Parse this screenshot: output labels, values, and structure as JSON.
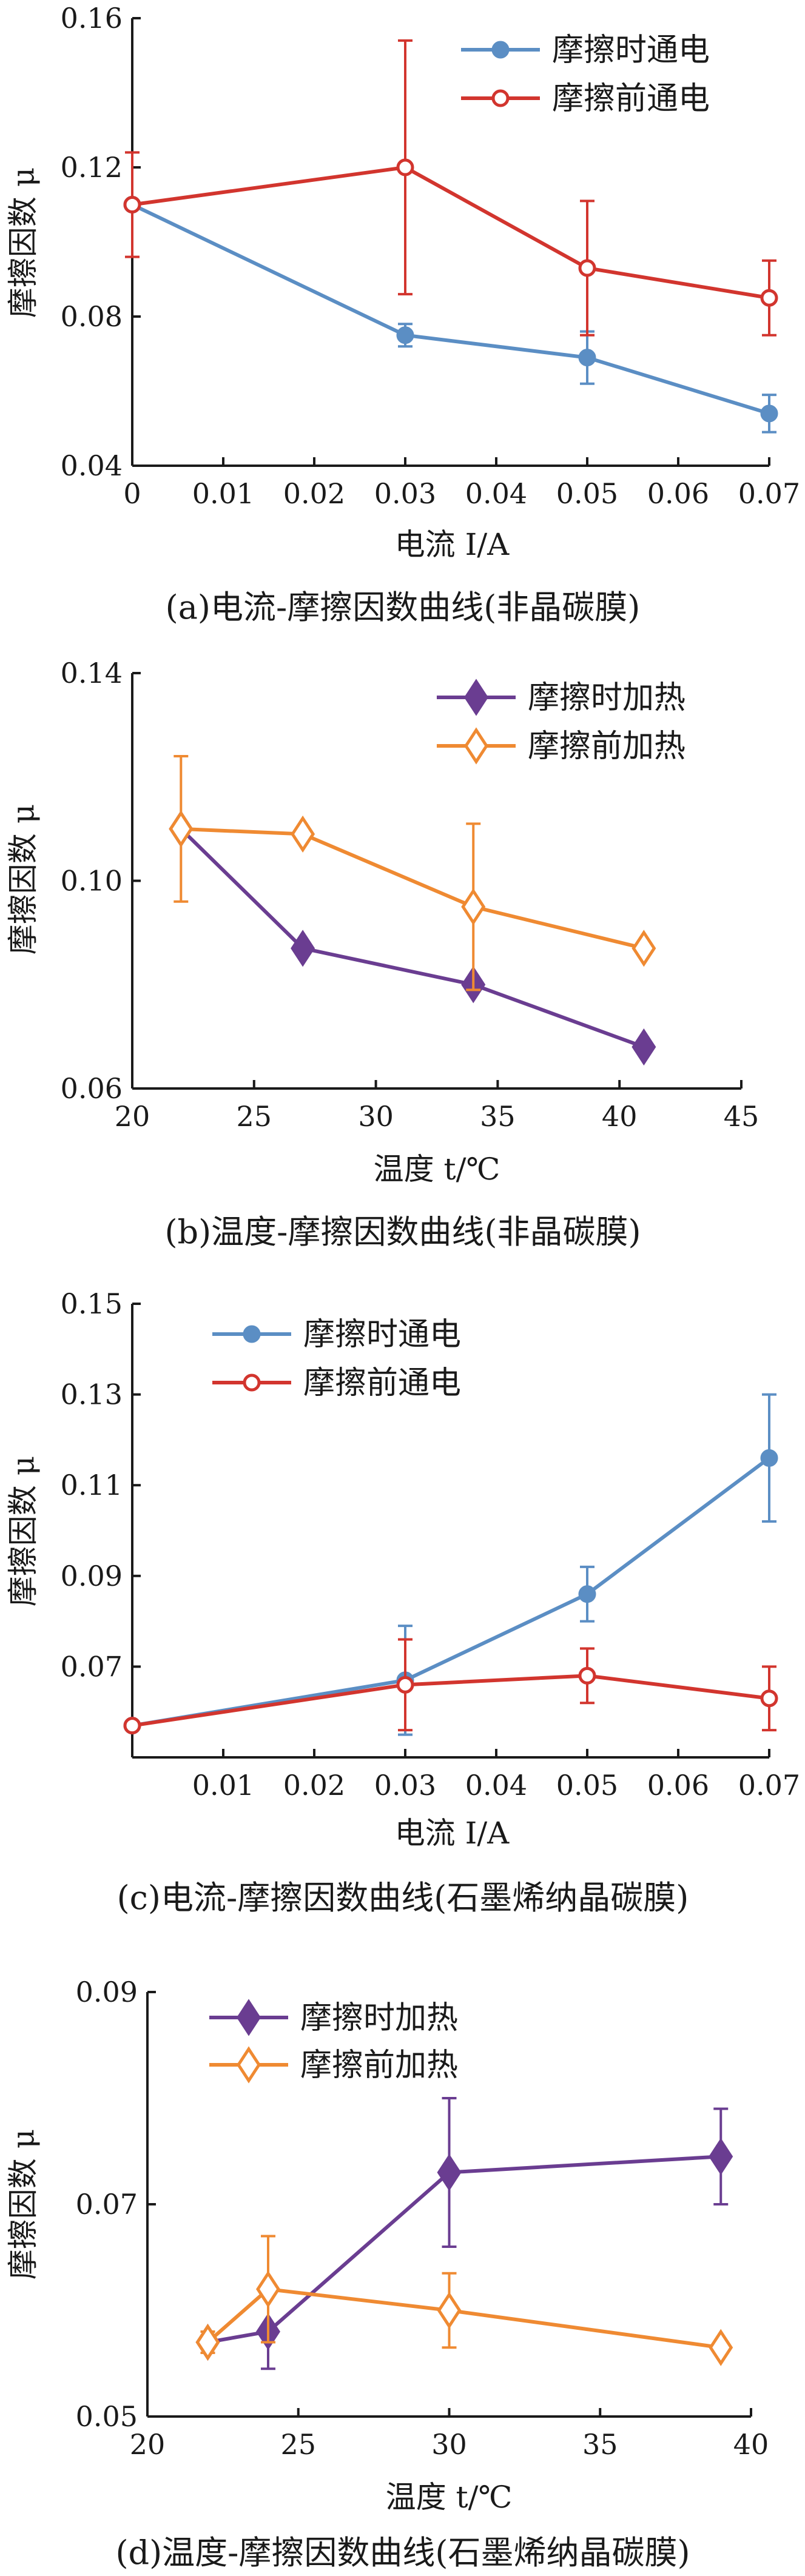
{
  "colors": {
    "blue": "#5b8ec4",
    "red": "#d2352e",
    "purple": "#6a3d91",
    "orange": "#ef8a32",
    "axis": "#1a1a1a"
  },
  "chart_data": [
    {
      "type": "line",
      "caption": "(a)电流-摩擦因数曲线(非晶碳膜)",
      "xlabel": "电流 I/A",
      "ylabel": "摩擦因数 μ",
      "xlim": [
        0,
        0.07
      ],
      "ylim": [
        0.04,
        0.16
      ],
      "xticks": [
        "0",
        "0.01",
        "0.02",
        "0.03",
        "0.04",
        "0.05",
        "0.06",
        "0.07"
      ],
      "yticks": [
        "0.04",
        "0.08",
        "0.12",
        "0.16"
      ],
      "legend_position": "top-right",
      "series": [
        {
          "name": "摩擦时通电",
          "color": "#5b8ec4",
          "marker": "circle-filled",
          "x": [
            0,
            0.03,
            0.05,
            0.07
          ],
          "y": [
            0.11,
            0.075,
            0.069,
            0.054
          ],
          "err": [
            0.0,
            0.003,
            0.007,
            0.005
          ]
        },
        {
          "name": "摩擦前通电",
          "color": "#d2352e",
          "marker": "circle-open",
          "x": [
            0,
            0.03,
            0.05,
            0.07
          ],
          "y": [
            0.11,
            0.12,
            0.093,
            0.085
          ],
          "err": [
            0.014,
            0.034,
            0.018,
            0.01
          ]
        }
      ]
    },
    {
      "type": "line",
      "caption": "(b)温度-摩擦因数曲线(非晶碳膜)",
      "xlabel": "温度 t/℃",
      "ylabel": "摩擦因数 μ",
      "xlim": [
        20,
        45
      ],
      "ylim": [
        0.06,
        0.14
      ],
      "xticks": [
        "20",
        "25",
        "30",
        "35",
        "40",
        "45"
      ],
      "yticks": [
        "0.06",
        "0.10",
        "0.14"
      ],
      "legend_position": "top-right",
      "series": [
        {
          "name": "摩擦时加热",
          "color": "#6a3d91",
          "marker": "diamond-filled",
          "x": [
            22,
            27,
            34,
            41
          ],
          "y": [
            0.11,
            0.087,
            0.08,
            0.068
          ],
          "err": [
            0.0,
            0.001,
            0.001,
            0.001
          ]
        },
        {
          "name": "摩擦前加热",
          "color": "#ef8a32",
          "marker": "diamond-open",
          "x": [
            22,
            27,
            34,
            41
          ],
          "y": [
            0.11,
            0.109,
            0.095,
            0.087
          ],
          "err": [
            0.014,
            0.0,
            0.016,
            0.0
          ]
        }
      ]
    },
    {
      "type": "line",
      "caption": "(c)电流-摩擦因数曲线(石墨烯纳晶碳膜)",
      "xlabel": "电流 I/A",
      "ylabel": "摩擦因数 μ",
      "xlim": [
        0,
        0.07
      ],
      "ylim": [
        0.05,
        0.15
      ],
      "xticks": [
        "0.01",
        "0.02",
        "0.03",
        "0.04",
        "0.05",
        "0.06",
        "0.07"
      ],
      "yticks": [
        "0.07",
        "0.09",
        "0.11",
        "0.13",
        "0.15"
      ],
      "legend_position": "top-left",
      "series": [
        {
          "name": "摩擦时通电",
          "color": "#5b8ec4",
          "marker": "circle-filled",
          "x": [
            0,
            0.03,
            0.05,
            0.07
          ],
          "y": [
            0.057,
            0.067,
            0.086,
            0.116
          ],
          "err": [
            0.0,
            0.012,
            0.006,
            0.014
          ]
        },
        {
          "name": "摩擦前通电",
          "color": "#d2352e",
          "marker": "circle-open",
          "x": [
            0,
            0.03,
            0.05,
            0.07
          ],
          "y": [
            0.057,
            0.066,
            0.068,
            0.063
          ],
          "err": [
            0.0,
            0.01,
            0.006,
            0.007
          ]
        }
      ]
    },
    {
      "type": "line",
      "caption": "(d)温度-摩擦因数曲线(石墨烯纳晶碳膜)",
      "xlabel": "温度 t/℃",
      "ylabel": "摩擦因数 μ",
      "xlim": [
        20,
        40
      ],
      "ylim": [
        0.05,
        0.09
      ],
      "xticks": [
        "20",
        "25",
        "30",
        "35",
        "40"
      ],
      "yticks": [
        "0.05",
        "0.07",
        "0.09"
      ],
      "legend_position": "top-left",
      "series": [
        {
          "name": "摩擦时加热",
          "color": "#6a3d91",
          "marker": "diamond-filled",
          "x": [
            22,
            24,
            30,
            39
          ],
          "y": [
            0.057,
            0.058,
            0.073,
            0.0745
          ],
          "err": [
            0.001,
            0.0035,
            0.007,
            0.0045
          ]
        },
        {
          "name": "摩擦前加热",
          "color": "#ef8a32",
          "marker": "diamond-open",
          "x": [
            22,
            24,
            30,
            39
          ],
          "y": [
            0.057,
            0.062,
            0.06,
            0.0565
          ],
          "err": [
            0.001,
            0.005,
            0.0035,
            0.0005
          ]
        }
      ]
    }
  ]
}
